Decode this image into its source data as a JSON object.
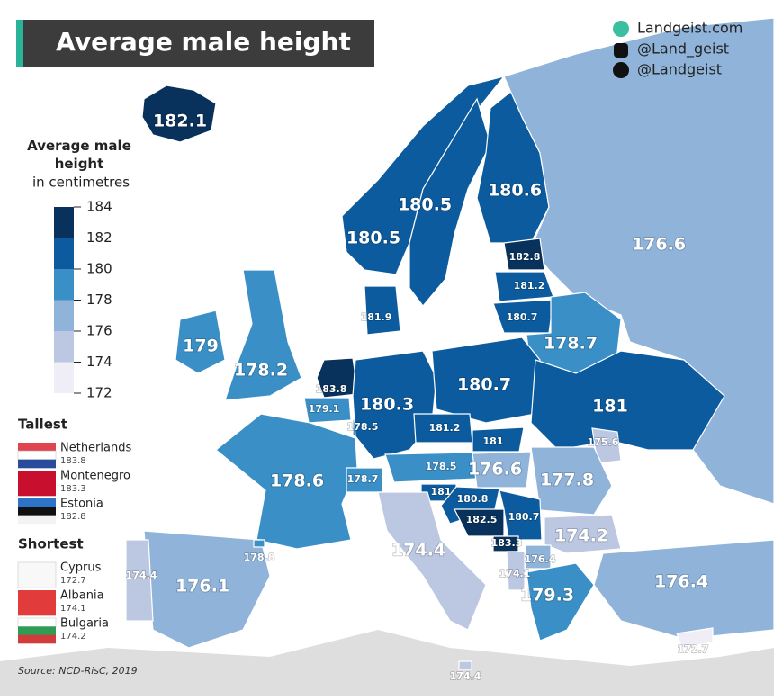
{
  "title": "Average male height",
  "brand": {
    "website": "Landgeist.com",
    "instagram": "@Land_geist",
    "twitter": "@Landgeist"
  },
  "legend": {
    "title": "Average male height",
    "subtitle": "in centimetres",
    "ticks": [
      184,
      182,
      180,
      178,
      176,
      174,
      172
    ],
    "colors": [
      "#08325c",
      "#0b5b9e",
      "#3a8fc6",
      "#8fb3d9",
      "#bcc7e1",
      "#efedf5"
    ]
  },
  "tallest": {
    "heading": "Tallest",
    "items": [
      {
        "country": "Netherlands",
        "value": 183.8
      },
      {
        "country": "Montenegro",
        "value": 183.3
      },
      {
        "country": "Estonia",
        "value": 182.8
      }
    ]
  },
  "shortest": {
    "heading": "Shortest",
    "items": [
      {
        "country": "Cyprus",
        "value": 172.7
      },
      {
        "country": "Albania",
        "value": 174.1
      },
      {
        "country": "Bulgaria",
        "value": 174.2
      }
    ]
  },
  "regions": [
    182.1,
    180.5,
    180.5,
    180.6,
    176.6,
    182.8,
    181.2,
    180.7,
    178.7,
    181.9,
    179.0,
    178.2,
    183.8,
    179.1,
    178.5,
    180.3,
    180.7,
    181.0,
    181.2,
    181.0,
    175.6,
    178.6,
    178.7,
    178.5,
    176.6,
    177.8,
    181.0,
    180.8,
    182.5,
    180.7,
    183.3,
    174.2,
    176.4,
    174.1,
    179.3,
    176.4,
    174.4,
    174.4,
    176.1,
    174.4,
    178.8,
    172.7
  ],
  "source": "Source: NCD-RisC, 2019"
}
